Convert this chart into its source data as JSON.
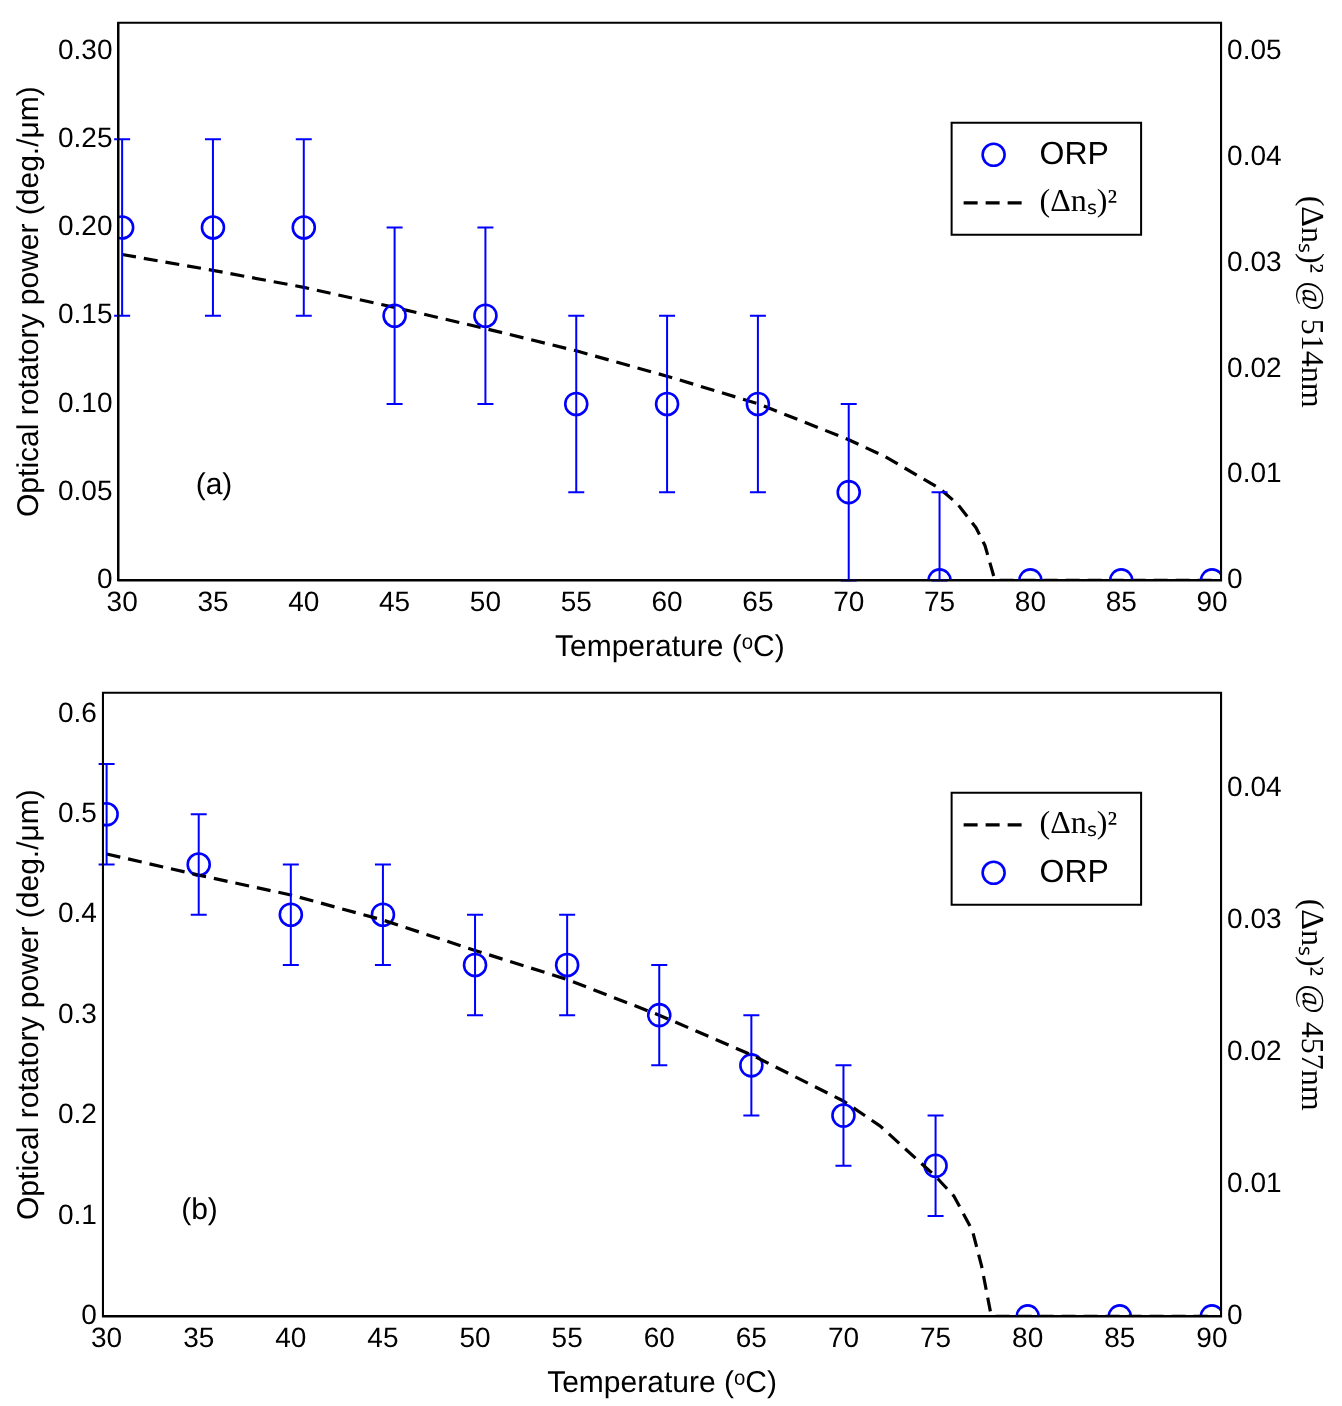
{
  "chart_data": [
    {
      "type": "scatter",
      "xlabel": "Temperature (ᵒC)",
      "ylabel": "Optical rotatory power (deg./μm)",
      "y2label": "(Δnₛ)² @ 514nm",
      "annotations": [
        "(a)"
      ],
      "xlim": [
        29.8,
        90.5
      ],
      "xticks": [
        30,
        35,
        40,
        45,
        50,
        55,
        60,
        65,
        70,
        75,
        80,
        85,
        90
      ],
      "ylim": [
        0,
        0.316
      ],
      "yticks": [
        0,
        0.05,
        {
          "value": 0.1,
          "label": "0.10"
        },
        0.15,
        {
          "value": 0.2,
          "label": "0.20"
        },
        0.25,
        {
          "value": 0.3,
          "label": "0.30"
        }
      ],
      "y2lim": [
        0,
        0.0527
      ],
      "y2ticks": [
        0,
        0.01,
        0.02,
        0.03,
        0.04,
        0.05
      ],
      "grid": false,
      "legend": "top right",
      "series": [
        {
          "name": "ORP",
          "marker": "circle",
          "color": "#0000ff",
          "x": [
            30,
            35,
            40,
            45,
            50,
            55,
            60,
            65,
            70,
            75,
            80,
            85,
            90
          ],
          "values": [
            0.2,
            0.2,
            0.2,
            0.15,
            0.15,
            0.1,
            0.1,
            0.1,
            0.05,
            0,
            0,
            0,
            0
          ],
          "errors": [
            0.05,
            0.05,
            0.05,
            0.05,
            0.05,
            0.05,
            0.05,
            0.05,
            0.05,
            [
              0,
              0.05
            ],
            null,
            null,
            null
          ]
        },
        {
          "name": "(Δnₛ)²",
          "type": "line",
          "axis": "y2",
          "marker": "none",
          "line_style": "dashed",
          "color": "#000000",
          "x": [
            30,
            35,
            40,
            45,
            50,
            55,
            60,
            65,
            70,
            72,
            75,
            76,
            77,
            77.5,
            78,
            78.2,
            90
          ],
          "values": [
            0.0308,
            0.0293,
            0.0277,
            0.0258,
            0.0238,
            0.0217,
            0.0193,
            0.0167,
            0.0133,
            0.0117,
            0.0087,
            0.0072,
            0.005,
            0.0033,
            0.0003,
            0,
            0
          ]
        }
      ]
    },
    {
      "type": "scatter",
      "xlabel": "Temperature (ᵒC)",
      "ylabel": "Optical rotatory power (deg./μm)",
      "y2label": "(Δnₛ)² @ 457nm",
      "annotations": [
        "(b)"
      ],
      "xlim": [
        29.8,
        90.5
      ],
      "xticks": [
        30,
        35,
        40,
        45,
        50,
        55,
        60,
        65,
        70,
        75,
        80,
        85,
        90
      ],
      "ylim": [
        0,
        0.621
      ],
      "yticks": [
        0,
        0.1,
        0.2,
        0.3,
        0.4,
        0.5,
        0.6
      ],
      "y2lim": [
        0,
        0.0472
      ],
      "y2ticks": [
        0,
        0.01,
        0.02,
        0.03,
        0.04
      ],
      "grid": false,
      "legend": "top right",
      "series": [
        {
          "name": "(Δnₛ)²",
          "type": "line",
          "axis": "y2",
          "marker": "none",
          "line_style": "dashed",
          "color": "#000000",
          "x": [
            30,
            35,
            40,
            45,
            50,
            55,
            60,
            65,
            70,
            72,
            75,
            76,
            77,
            77.5,
            78,
            78.2,
            90
          ],
          "values": [
            0.035,
            0.0334,
            0.0319,
            0.03,
            0.0277,
            0.0255,
            0.0228,
            0.0198,
            0.0163,
            0.0144,
            0.0106,
            0.0091,
            0.0065,
            0.0038,
            0.0002,
            0,
            0
          ]
        },
        {
          "name": "ORP",
          "marker": "circle",
          "color": "#0000ff",
          "x": [
            30,
            35,
            40,
            45,
            50,
            55,
            60,
            65,
            70,
            75,
            80,
            85,
            90
          ],
          "values": [
            0.5,
            0.45,
            0.4,
            0.4,
            0.35,
            0.35,
            0.3,
            0.25,
            0.2,
            0.15,
            0,
            0,
            0
          ],
          "errors": [
            0.05,
            0.05,
            0.05,
            0.05,
            0.05,
            0.05,
            0.05,
            0.05,
            0.05,
            0.05,
            null,
            null,
            null
          ]
        }
      ]
    }
  ]
}
